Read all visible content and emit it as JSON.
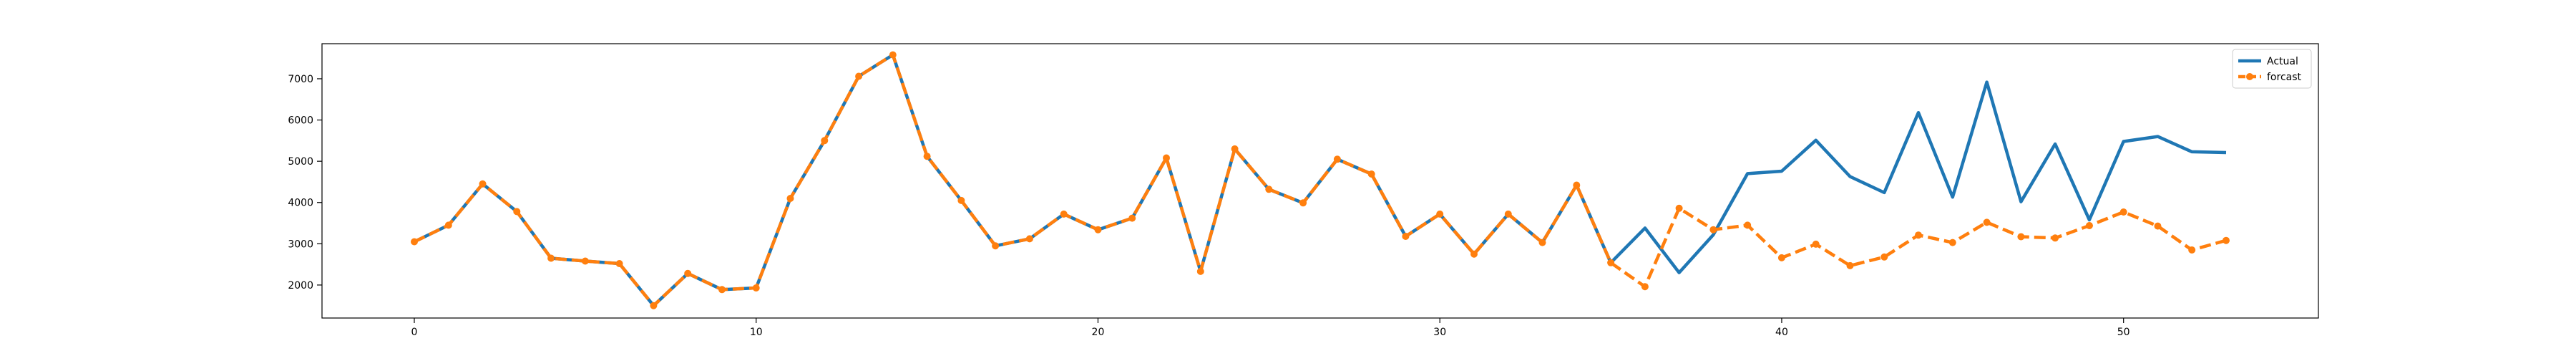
{
  "chart_data": {
    "type": "line",
    "title": "",
    "xlabel": "",
    "ylabel": "",
    "xlim": [
      -2.7,
      55.7
    ],
    "ylim": [
      1200,
      7850
    ],
    "xticks": [
      0,
      10,
      20,
      30,
      40,
      50
    ],
    "yticks": [
      2000,
      3000,
      4000,
      5000,
      6000,
      7000
    ],
    "grid": false,
    "legend_position": "top-right",
    "series": [
      {
        "name": "Actual",
        "color": "#1f77b4",
        "style": "solid",
        "marker": "none",
        "x": [
          0,
          1,
          2,
          3,
          4,
          5,
          6,
          7,
          8,
          9,
          10,
          11,
          12,
          13,
          14,
          15,
          16,
          17,
          18,
          19,
          20,
          21,
          22,
          23,
          24,
          25,
          26,
          27,
          28,
          29,
          30,
          31,
          32,
          33,
          34,
          35,
          36,
          37,
          38,
          39,
          40,
          41,
          42,
          43,
          44,
          45,
          46,
          47,
          48,
          49,
          50,
          51,
          52,
          53
        ],
        "values": [
          3050,
          3450,
          4450,
          3780,
          2650,
          2580,
          2520,
          1500,
          2280,
          1890,
          1930,
          4100,
          5500,
          7060,
          7580,
          5120,
          4050,
          2950,
          3120,
          3720,
          3340,
          3620,
          5080,
          2330,
          5300,
          4320,
          3990,
          5050,
          4690,
          3180,
          3720,
          2750,
          3720,
          3030,
          4420,
          2540,
          3380,
          2300,
          3220,
          4700,
          4760,
          5510,
          4630,
          4240,
          6180,
          4130,
          6920,
          4020,
          5420,
          3580,
          5480,
          5600,
          5230,
          5210
        ]
      },
      {
        "name": "forcast",
        "color": "#ff7f0e",
        "style": "dashed",
        "marker": "circle",
        "x": [
          0,
          1,
          2,
          3,
          4,
          5,
          6,
          7,
          8,
          9,
          10,
          11,
          12,
          13,
          14,
          15,
          16,
          17,
          18,
          19,
          20,
          21,
          22,
          23,
          24,
          25,
          26,
          27,
          28,
          29,
          30,
          31,
          32,
          33,
          34,
          35,
          36,
          37,
          38,
          39,
          40,
          41,
          42,
          43,
          44,
          45,
          46,
          47,
          48,
          49,
          50,
          51,
          52,
          53
        ],
        "values": [
          3050,
          3450,
          4450,
          3780,
          2650,
          2580,
          2520,
          1500,
          2280,
          1890,
          1930,
          4100,
          5500,
          7060,
          7580,
          5120,
          4050,
          2950,
          3120,
          3720,
          3340,
          3620,
          5080,
          2330,
          5300,
          4320,
          3990,
          5050,
          4690,
          3180,
          3720,
          2750,
          3720,
          3030,
          4420,
          2540,
          1960,
          3860,
          3340,
          3450,
          2660,
          2990,
          2470,
          2680,
          3210,
          3030,
          3520,
          3170,
          3140,
          3440,
          3770,
          3430,
          2850,
          3080
        ]
      }
    ]
  }
}
